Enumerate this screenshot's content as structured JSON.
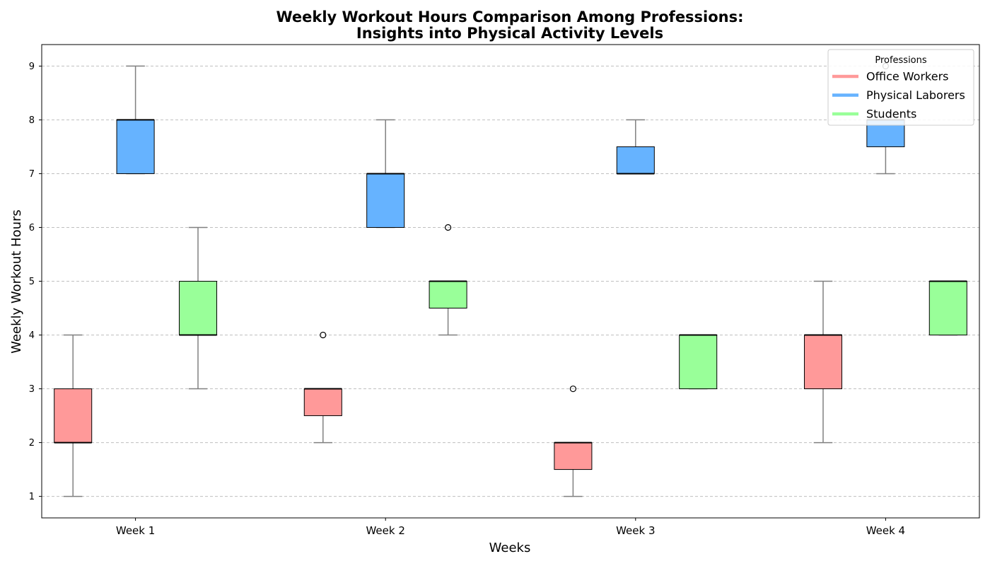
{
  "chart_data": {
    "type": "boxplot",
    "title_line1": "Weekly Workout Hours Comparison Among Professions:",
    "title_line2": "Insights into Physical Activity Levels",
    "xlabel": "Weeks",
    "ylabel": "Weekly Workout Hours",
    "categories": [
      "Week 1",
      "Week 2",
      "Week 3",
      "Week 4"
    ],
    "ylim": [
      0.6,
      9.4
    ],
    "yticks": [
      1,
      2,
      3,
      4,
      5,
      6,
      7,
      8,
      9
    ],
    "grid": "y-dashed",
    "legend": {
      "title": "Professions",
      "placement": "top-right"
    },
    "series": [
      {
        "name": "Office Workers",
        "color": "#ff9999",
        "boxes": [
          {
            "whisker_low": 1,
            "q1": 2,
            "median": 2,
            "q3": 3,
            "whisker_high": 4,
            "outliers": []
          },
          {
            "whisker_low": 2,
            "q1": 2.5,
            "median": 3,
            "q3": 3,
            "whisker_high": 3,
            "outliers": [
              4
            ]
          },
          {
            "whisker_low": 1,
            "q1": 1.5,
            "median": 2,
            "q3": 2,
            "whisker_high": 2,
            "outliers": [
              3
            ]
          },
          {
            "whisker_low": 2,
            "q1": 3,
            "median": 4,
            "q3": 4,
            "whisker_high": 5,
            "outliers": []
          }
        ]
      },
      {
        "name": "Physical Laborers",
        "color": "#66b3ff",
        "boxes": [
          {
            "whisker_low": 7,
            "q1": 7,
            "median": 8,
            "q3": 8,
            "whisker_high": 9,
            "outliers": []
          },
          {
            "whisker_low": 6,
            "q1": 6,
            "median": 7,
            "q3": 7,
            "whisker_high": 8,
            "outliers": []
          },
          {
            "whisker_low": 7,
            "q1": 7,
            "median": 7,
            "q3": 7.5,
            "whisker_high": 8,
            "outliers": []
          },
          {
            "whisker_low": 7,
            "q1": 7.5,
            "median": 8,
            "q3": 8,
            "whisker_high": 8,
            "outliers": [
              9
            ]
          }
        ]
      },
      {
        "name": "Students",
        "color": "#99ff99",
        "boxes": [
          {
            "whisker_low": 3,
            "q1": 4,
            "median": 4,
            "q3": 5,
            "whisker_high": 6,
            "outliers": []
          },
          {
            "whisker_low": 4,
            "q1": 4.5,
            "median": 5,
            "q3": 5,
            "whisker_high": 5,
            "outliers": [
              6
            ]
          },
          {
            "whisker_low": 3,
            "q1": 3,
            "median": 4,
            "q3": 4,
            "whisker_high": 4,
            "outliers": []
          },
          {
            "whisker_low": 4,
            "q1": 4,
            "median": 5,
            "q3": 5,
            "whisker_high": 5,
            "outliers": []
          }
        ]
      }
    ]
  }
}
